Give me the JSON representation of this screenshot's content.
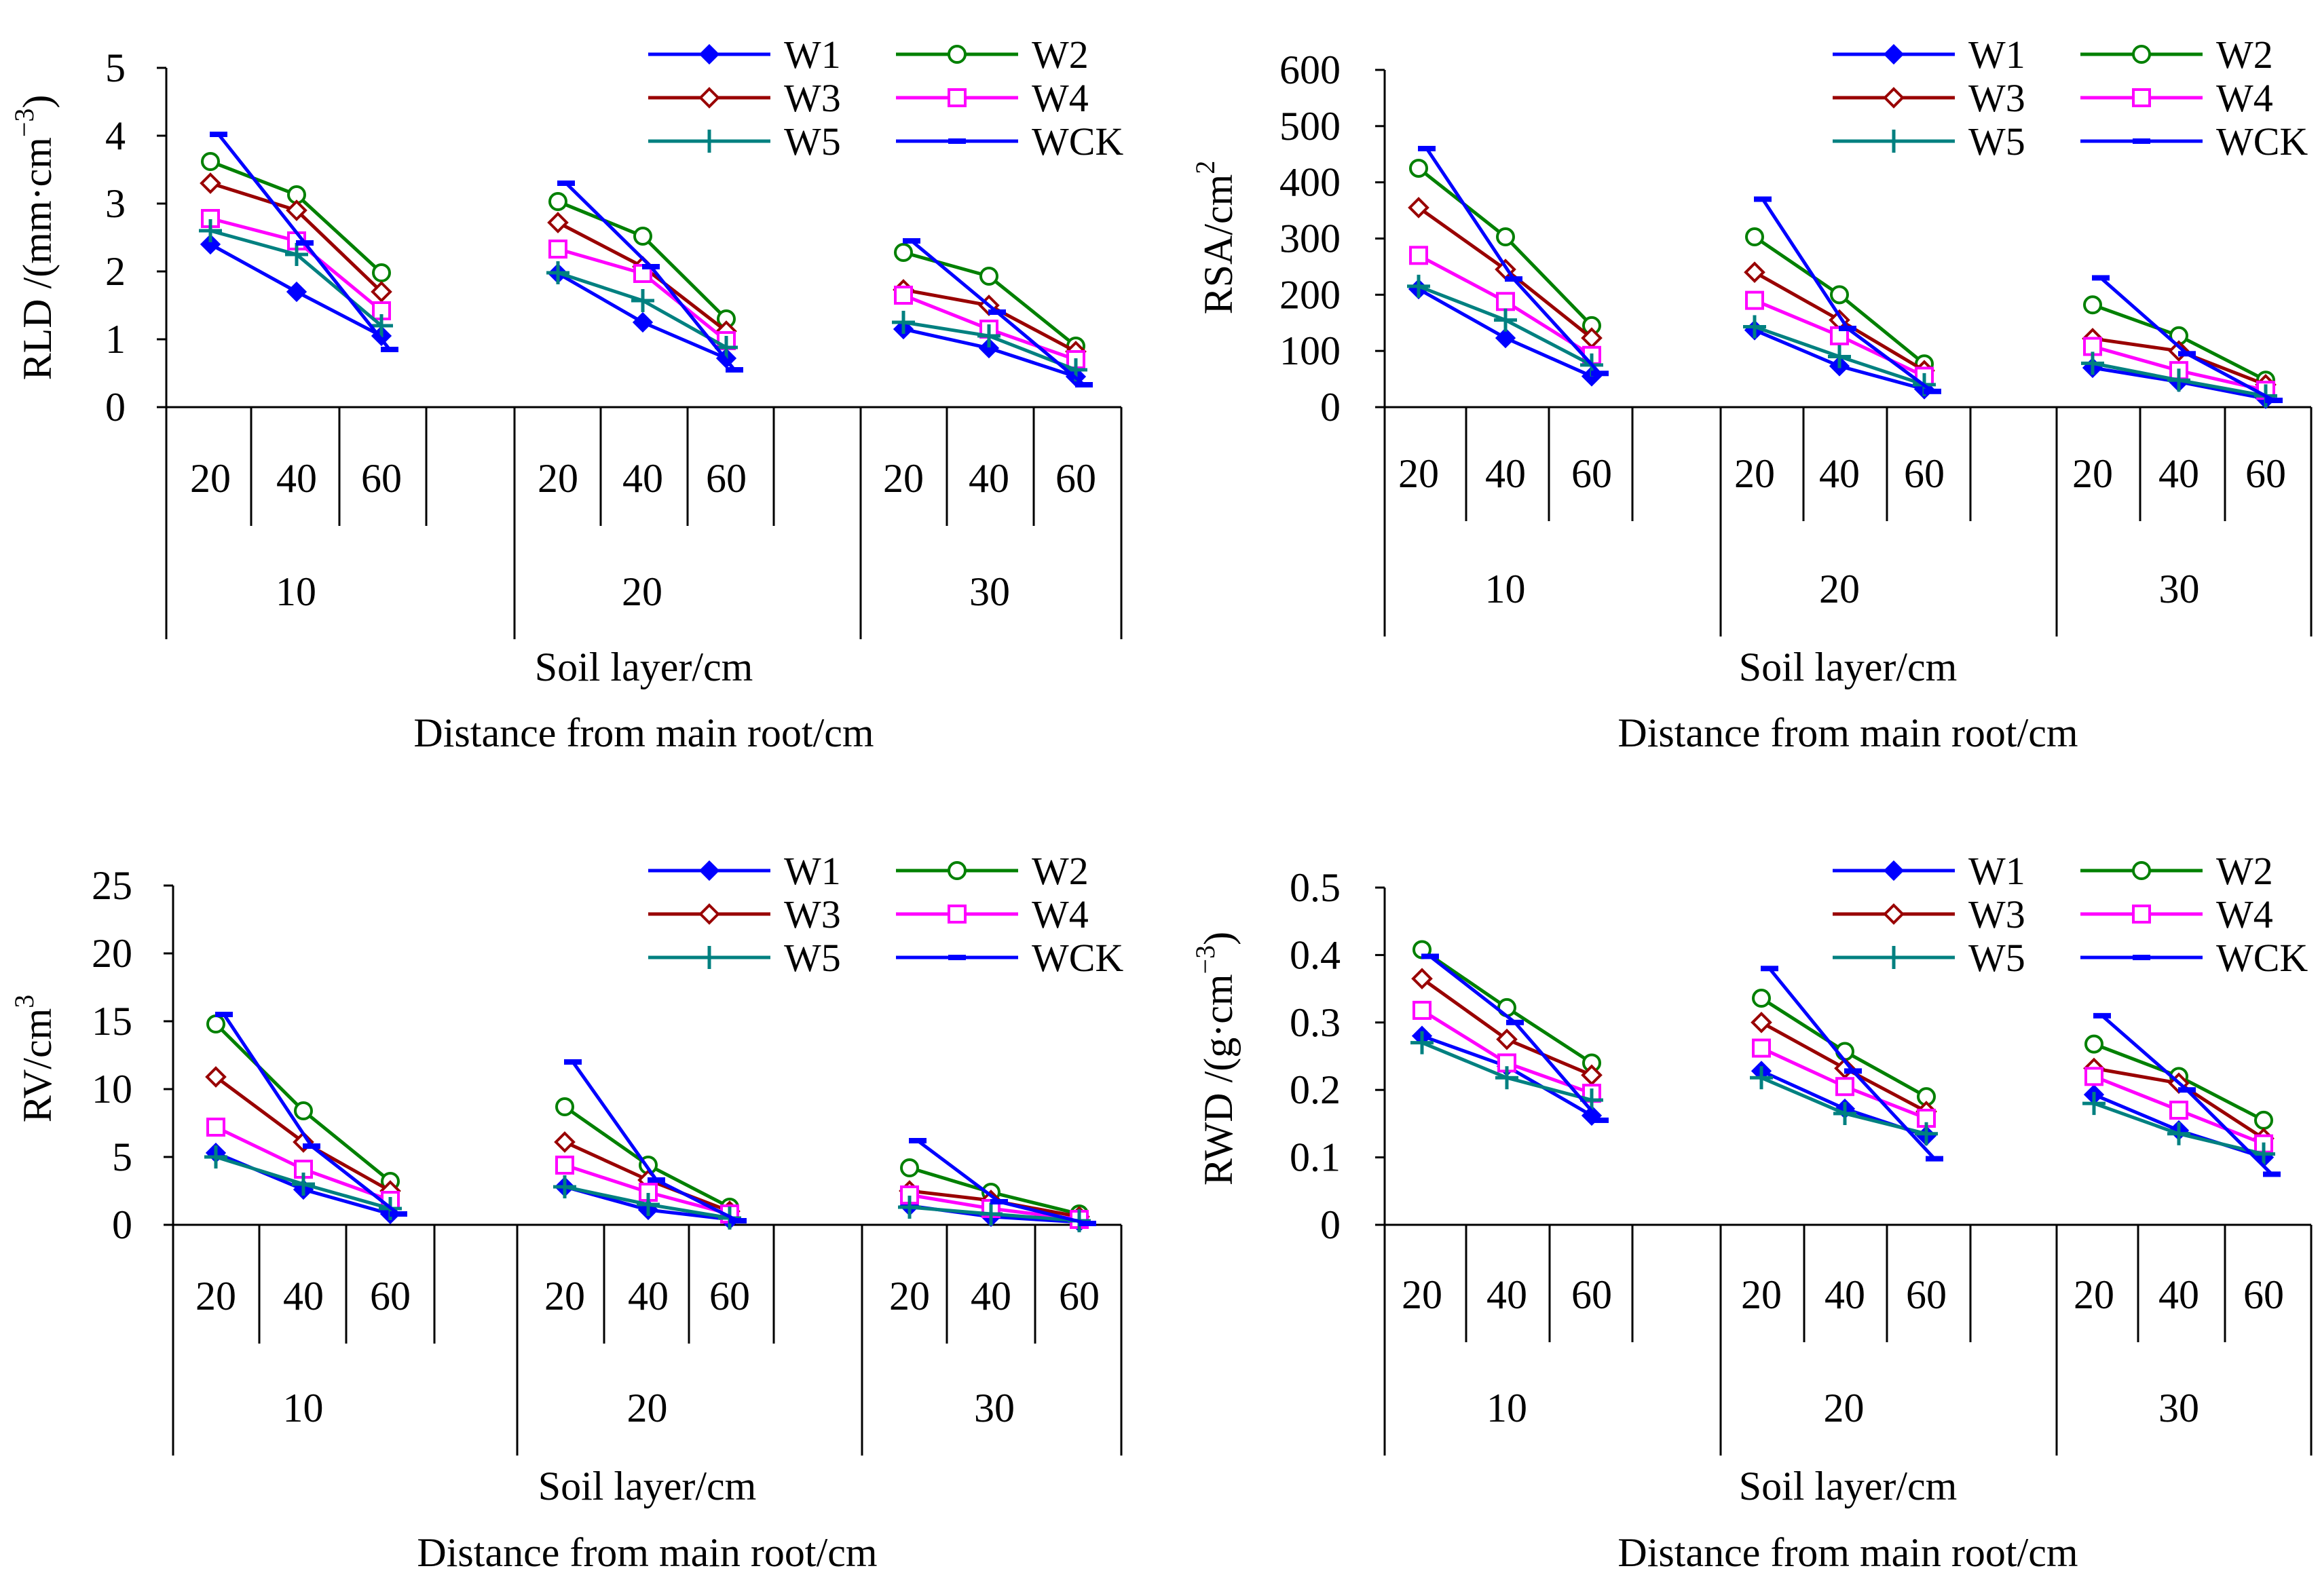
{
  "figure": {
    "colors": {
      "W1": "#0000ff",
      "W2": "#008000",
      "W3": "#990000",
      "W4": "#ff00ff",
      "W5": "#008080",
      "WCK": "#0000ff"
    }
  },
  "chart_data": [
    {
      "type": "line",
      "id": "rld",
      "ylabel_main": "RLD /(mm·cm",
      "ylabel_sup": "−3",
      "ylabel_close": ")",
      "ylim": [
        0,
        5
      ],
      "yticks": [
        "0",
        "1",
        "2",
        "3",
        "4",
        "5"
      ],
      "soil_layers": [
        "20",
        "40",
        "60"
      ],
      "distances": [
        "10",
        "20",
        "30"
      ],
      "xlabel_soil": "Soil layer/cm",
      "xlabel_distance": "Distance from main root/cm",
      "series": [
        {
          "name": "W1",
          "marker": "diamond-filled",
          "values": [
            [
              2.4,
              1.7,
              1.05
            ],
            [
              1.97,
              1.25,
              0.72
            ],
            [
              1.15,
              0.87,
              0.45
            ]
          ]
        },
        {
          "name": "W2",
          "marker": "circle-open",
          "values": [
            [
              3.62,
              3.13,
              1.98
            ],
            [
              3.03,
              2.52,
              1.3
            ],
            [
              2.28,
              1.93,
              0.9
            ]
          ]
        },
        {
          "name": "W3",
          "marker": "diamond-open",
          "values": [
            [
              3.3,
              2.9,
              1.7
            ],
            [
              2.72,
              2.07,
              1.12
            ],
            [
              1.73,
              1.5,
              0.82
            ]
          ]
        },
        {
          "name": "W4",
          "marker": "square-open",
          "values": [
            [
              2.78,
              2.45,
              1.42
            ],
            [
              2.33,
              1.97,
              0.98
            ],
            [
              1.65,
              1.15,
              0.7
            ]
          ]
        },
        {
          "name": "W5",
          "marker": "plus",
          "values": [
            [
              2.6,
              2.25,
              1.2
            ],
            [
              1.98,
              1.57,
              0.88
            ],
            [
              1.25,
              1.05,
              0.55
            ]
          ]
        },
        {
          "name": "WCK",
          "marker": "dash",
          "values": [
            [
              4.02,
              2.42,
              0.85
            ],
            [
              3.3,
              2.07,
              0.55
            ],
            [
              2.45,
              1.4,
              0.33
            ]
          ]
        }
      ]
    },
    {
      "type": "line",
      "id": "rsa",
      "ylabel_main": "RSA/cm",
      "ylabel_sup": "2",
      "ylabel_close": "",
      "ylim": [
        0,
        600
      ],
      "yticks": [
        "0",
        "100",
        "200",
        "300",
        "400",
        "500",
        "600"
      ],
      "soil_layers": [
        "20",
        "40",
        "60"
      ],
      "distances": [
        "10",
        "20",
        "30"
      ],
      "xlabel_soil": "Soil layer/cm",
      "xlabel_distance": "Distance from main root/cm",
      "series": [
        {
          "name": "W1",
          "marker": "diamond-filled",
          "values": [
            [
              210,
              123,
              55
            ],
            [
              137,
              73,
              32
            ],
            [
              70,
              45,
              15
            ]
          ]
        },
        {
          "name": "W2",
          "marker": "circle-open",
          "values": [
            [
              425,
              303,
              145
            ],
            [
              303,
              200,
              77
            ],
            [
              182,
              127,
              48
            ]
          ]
        },
        {
          "name": "W3",
          "marker": "diamond-open",
          "values": [
            [
              355,
              245,
              123
            ],
            [
              240,
              155,
              65
            ],
            [
              122,
              100,
              40
            ]
          ]
        },
        {
          "name": "W4",
          "marker": "square-open",
          "values": [
            [
              270,
              188,
              92
            ],
            [
              190,
              127,
              55
            ],
            [
              108,
              65,
              30
            ]
          ]
        },
        {
          "name": "W5",
          "marker": "plus",
          "values": [
            [
              215,
              155,
              75
            ],
            [
              143,
              90,
              40
            ],
            [
              78,
              48,
              20
            ]
          ]
        },
        {
          "name": "WCK",
          "marker": "dash",
          "values": [
            [
              460,
              228,
              60
            ],
            [
              370,
              140,
              28
            ],
            [
              230,
              95,
              12
            ]
          ]
        }
      ]
    },
    {
      "type": "line",
      "id": "rv",
      "ylabel_main": "RV/cm",
      "ylabel_sup": "3",
      "ylabel_close": "",
      "ylim": [
        0,
        25
      ],
      "yticks": [
        "0",
        "5",
        "10",
        "15",
        "20",
        "25"
      ],
      "soil_layers": [
        "20",
        "40",
        "60"
      ],
      "distances": [
        "10",
        "20",
        "30"
      ],
      "xlabel_soil": "Soil layer/cm",
      "xlabel_distance": "Distance from main root/cm",
      "series": [
        {
          "name": "W1",
          "marker": "diamond-filled",
          "values": [
            [
              5.3,
              2.6,
              0.8
            ],
            [
              2.8,
              1.1,
              0.4
            ],
            [
              1.4,
              0.6,
              0.2
            ]
          ]
        },
        {
          "name": "W2",
          "marker": "circle-open",
          "values": [
            [
              14.8,
              8.4,
              3.2
            ],
            [
              8.7,
              4.4,
              1.3
            ],
            [
              4.2,
              2.4,
              0.8
            ]
          ]
        },
        {
          "name": "W3",
          "marker": "diamond-open",
          "values": [
            [
              10.9,
              6.1,
              2.5
            ],
            [
              6.1,
              3.3,
              1.0
            ],
            [
              2.5,
              1.8,
              0.6
            ]
          ]
        },
        {
          "name": "W4",
          "marker": "square-open",
          "values": [
            [
              7.2,
              4.1,
              1.8
            ],
            [
              4.4,
              2.4,
              0.8
            ],
            [
              2.2,
              1.2,
              0.4
            ]
          ]
        },
        {
          "name": "W5",
          "marker": "plus",
          "values": [
            [
              5.0,
              3.0,
              1.2
            ],
            [
              2.8,
              1.5,
              0.5
            ],
            [
              1.3,
              0.8,
              0.3
            ]
          ]
        },
        {
          "name": "WCK",
          "marker": "dash",
          "values": [
            [
              15.5,
              5.8,
              0.8
            ],
            [
              12.0,
              3.3,
              0.3
            ],
            [
              6.2,
              1.7,
              0.1
            ]
          ]
        }
      ]
    },
    {
      "type": "line",
      "id": "rwd",
      "ylabel_main": "RWD /(g·cm",
      "ylabel_sup": "−3",
      "ylabel_close": ")",
      "ylim": [
        0,
        0.5
      ],
      "yticks": [
        "0",
        "0.1",
        "0.2",
        "0.3",
        "0.4",
        "0.5"
      ],
      "soil_layers": [
        "20",
        "40",
        "60"
      ],
      "distances": [
        "10",
        "20",
        "30"
      ],
      "xlabel_soil": "Soil layer/cm",
      "xlabel_distance": "Distance from main root/cm",
      "series": [
        {
          "name": "W1",
          "marker": "diamond-filled",
          "values": [
            [
              0.28,
              0.235,
              0.162
            ],
            [
              0.228,
              0.172,
              0.132
            ],
            [
              0.193,
              0.14,
              0.1
            ]
          ]
        },
        {
          "name": "W2",
          "marker": "circle-open",
          "values": [
            [
              0.408,
              0.322,
              0.24
            ],
            [
              0.336,
              0.257,
              0.19
            ],
            [
              0.268,
              0.22,
              0.155
            ]
          ]
        },
        {
          "name": "W3",
          "marker": "diamond-open",
          "values": [
            [
              0.365,
              0.275,
              0.222
            ],
            [
              0.3,
              0.232,
              0.168
            ],
            [
              0.232,
              0.21,
              0.128
            ]
          ]
        },
        {
          "name": "W4",
          "marker": "square-open",
          "values": [
            [
              0.318,
              0.24,
              0.195
            ],
            [
              0.262,
              0.205,
              0.158
            ],
            [
              0.22,
              0.17,
              0.12
            ]
          ]
        },
        {
          "name": "W5",
          "marker": "plus",
          "values": [
            [
              0.27,
              0.218,
              0.185
            ],
            [
              0.218,
              0.165,
              0.135
            ],
            [
              0.18,
              0.135,
              0.105
            ]
          ]
        },
        {
          "name": "WCK",
          "marker": "dash",
          "values": [
            [
              0.398,
              0.3,
              0.155
            ],
            [
              0.38,
              0.228,
              0.098
            ],
            [
              0.31,
              0.2,
              0.075
            ]
          ]
        }
      ]
    }
  ]
}
